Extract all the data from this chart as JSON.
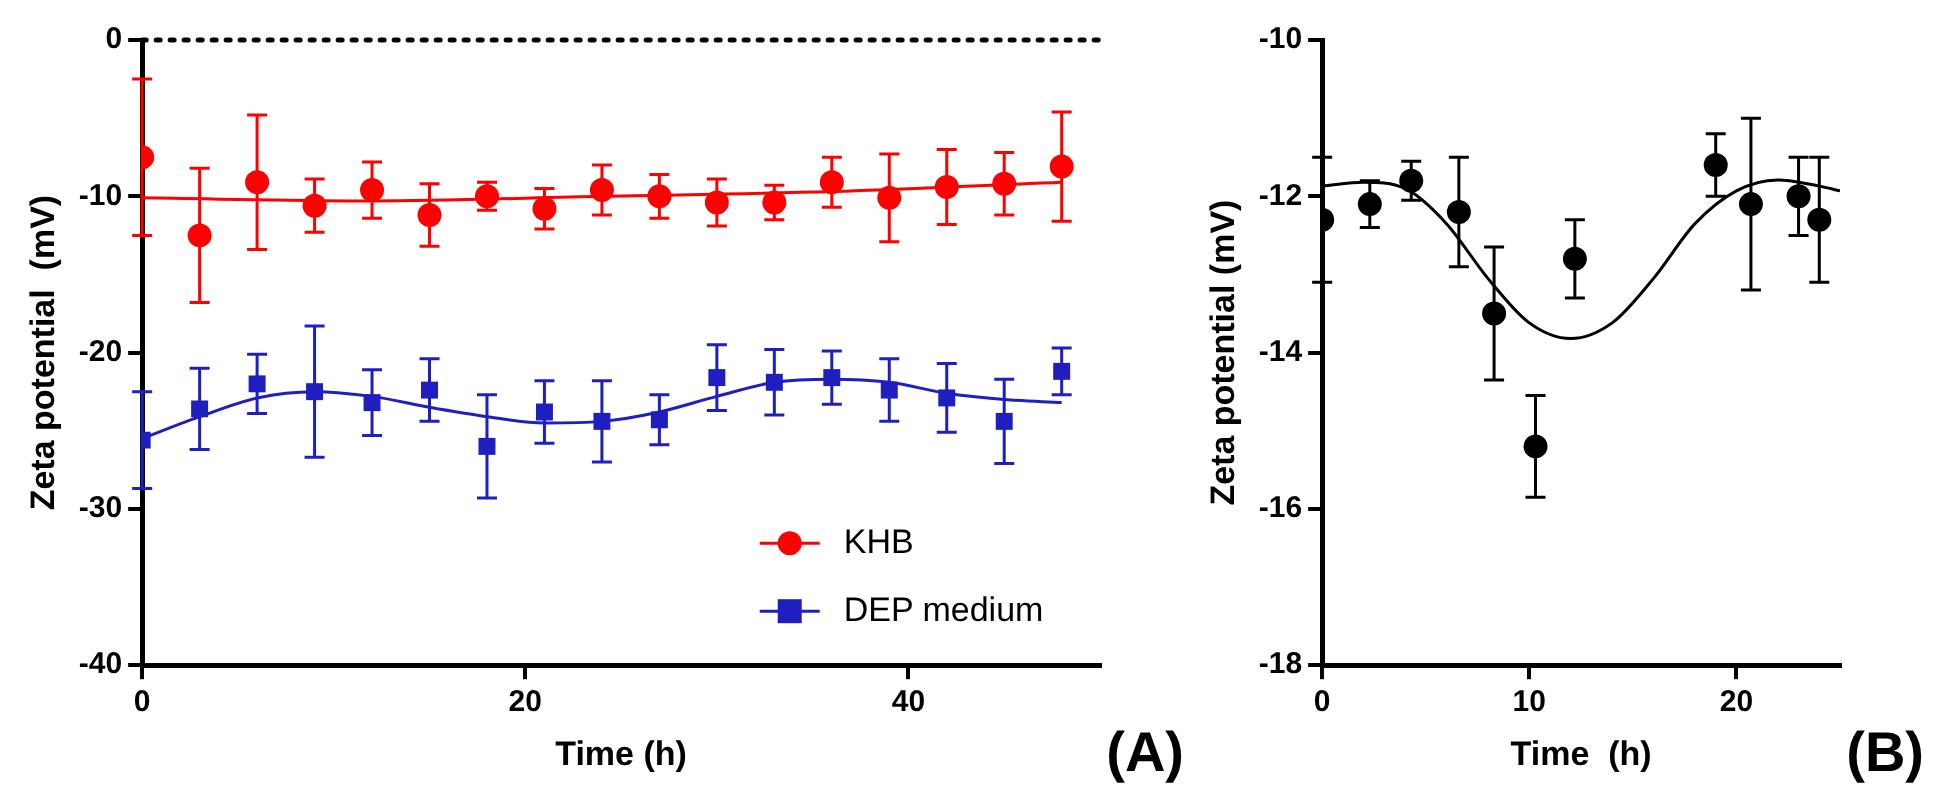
{
  "chart_data": [
    {
      "type": "scatter",
      "xlabel": "Time (h)",
      "ylabel": "Zeta potential  (mV)",
      "xlim": [
        0,
        50
      ],
      "xticks": [
        0,
        20,
        40
      ],
      "ylim": [
        -40,
        0
      ],
      "yticks": [
        -40,
        -30,
        -20,
        -10,
        0
      ],
      "grid": false,
      "legend": "bottom right",
      "ref_lines": [
        {
          "axis": "y",
          "value": 0,
          "color": "#000000",
          "line_style": "dotted"
        }
      ],
      "annotations": [
        "(A)"
      ],
      "series": [
        {
          "name": "KHB",
          "marker": "circle",
          "color": "#ff0000",
          "x": [
            0,
            3,
            6,
            9,
            12,
            15,
            18,
            21,
            24,
            27,
            30,
            33,
            36,
            39,
            42,
            45,
            48
          ],
          "values": [
            -7.5,
            -12.5,
            -9.1,
            -10.6,
            -9.6,
            -11.2,
            -10,
            -10.8,
            -9.6,
            -10,
            -10.4,
            -10.4,
            -9.1,
            -10.1,
            -9.4,
            -9.2,
            -8.1
          ],
          "errors": [
            5,
            4.3,
            4.3,
            1.7,
            1.8,
            2,
            0.9,
            1.3,
            1.6,
            1.4,
            1.5,
            1.1,
            1.6,
            2.8,
            2.4,
            2,
            3.5
          ]
        },
        {
          "name": "DEP medium",
          "marker": "square",
          "color": "#1f1fbf",
          "x": [
            0,
            3,
            6,
            9,
            12,
            15,
            18,
            21,
            24,
            27,
            30,
            33,
            36,
            39,
            42,
            45,
            48
          ],
          "values": [
            -25.6,
            -23.6,
            -22,
            -22.5,
            -23.2,
            -22.4,
            -26,
            -23.8,
            -24.4,
            -24.3,
            -21.6,
            -21.9,
            -21.6,
            -22.4,
            -22.9,
            -24.4,
            -21.2
          ],
          "errors": [
            3.1,
            2.6,
            1.9,
            4.2,
            2.1,
            2,
            3.3,
            2,
            2.6,
            1.6,
            2.1,
            2.1,
            1.7,
            2,
            2.2,
            2.7,
            1.5
          ]
        },
        {
          "type": "line",
          "marker": "none",
          "color": "#ff0000",
          "x": [
            0,
            12,
            24,
            36,
            48
          ],
          "values": [
            -10.1,
            -10.3,
            -10,
            -9.7,
            -9.1
          ]
        },
        {
          "type": "line",
          "marker": "none",
          "color": "#1f1fbf",
          "x": [
            0,
            3,
            6,
            9,
            12,
            15,
            18,
            21,
            24,
            27,
            30,
            33,
            36,
            39,
            42,
            45,
            48
          ],
          "values": [
            -25.5,
            -24.1,
            -22.9,
            -22.5,
            -22.8,
            -23.5,
            -24.1,
            -24.5,
            -24.4,
            -23.8,
            -22.8,
            -21.9,
            -21.7,
            -21.9,
            -22.6,
            -23,
            -23.2
          ]
        }
      ]
    },
    {
      "type": "scatter",
      "xlabel": "Time  (h)",
      "ylabel": "Zeta potential (mV)",
      "xlim": [
        0,
        25
      ],
      "xticks": [
        0,
        10,
        20
      ],
      "ylim": [
        -18,
        -10
      ],
      "yticks": [
        -18,
        -16,
        -14,
        -12,
        -10
      ],
      "grid": false,
      "annotations": [
        "(B)"
      ],
      "series": [
        {
          "marker": "circle",
          "color": "#000000",
          "x": [
            0,
            2.3,
            4.3,
            6.6,
            8.3,
            10.3,
            12.2,
            19,
            20.7,
            23,
            24
          ],
          "values": [
            -12.3,
            -12.1,
            -11.8,
            -12.2,
            -13.5,
            -15.2,
            -12.8,
            -11.6,
            -12.1,
            -12,
            -12.3
          ],
          "errors": [
            0.8,
            0.3,
            0.25,
            0.7,
            0.85,
            0.65,
            0.5,
            0.4,
            1.1,
            0.5,
            0.8
          ]
        },
        {
          "type": "line",
          "marker": "none",
          "color": "#000000",
          "x": [
            0,
            2,
            4,
            6,
            8,
            10,
            12,
            14,
            16,
            18,
            20,
            22,
            24,
            25
          ],
          "values": [
            -11.87,
            -11.82,
            -11.9,
            -12.35,
            -13.05,
            -13.62,
            -13.82,
            -13.62,
            -13.05,
            -12.35,
            -11.93,
            -11.79,
            -11.87,
            -11.93
          ]
        }
      ]
    }
  ]
}
